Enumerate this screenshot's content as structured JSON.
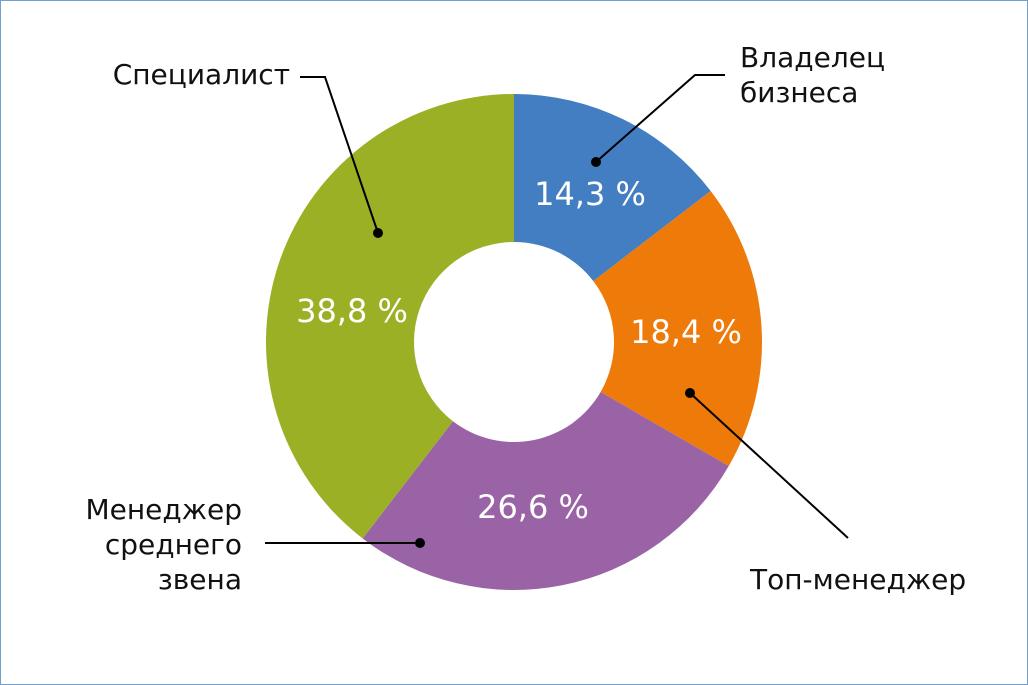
{
  "chart_data": {
    "type": "donut",
    "categories": [
      "Владелец бизнеса",
      "Топ-менеджер",
      "Менеджер среднего звена",
      "Специалист"
    ],
    "values": [
      14.3,
      18.4,
      26.6,
      38.8
    ],
    "value_labels": [
      "14,3 %",
      "18,4 %",
      "26,6 %",
      "38,8 %"
    ],
    "colors": [
      "#437ec2",
      "#ee7a0a",
      "#9a63a5",
      "#9cb025"
    ]
  }
}
